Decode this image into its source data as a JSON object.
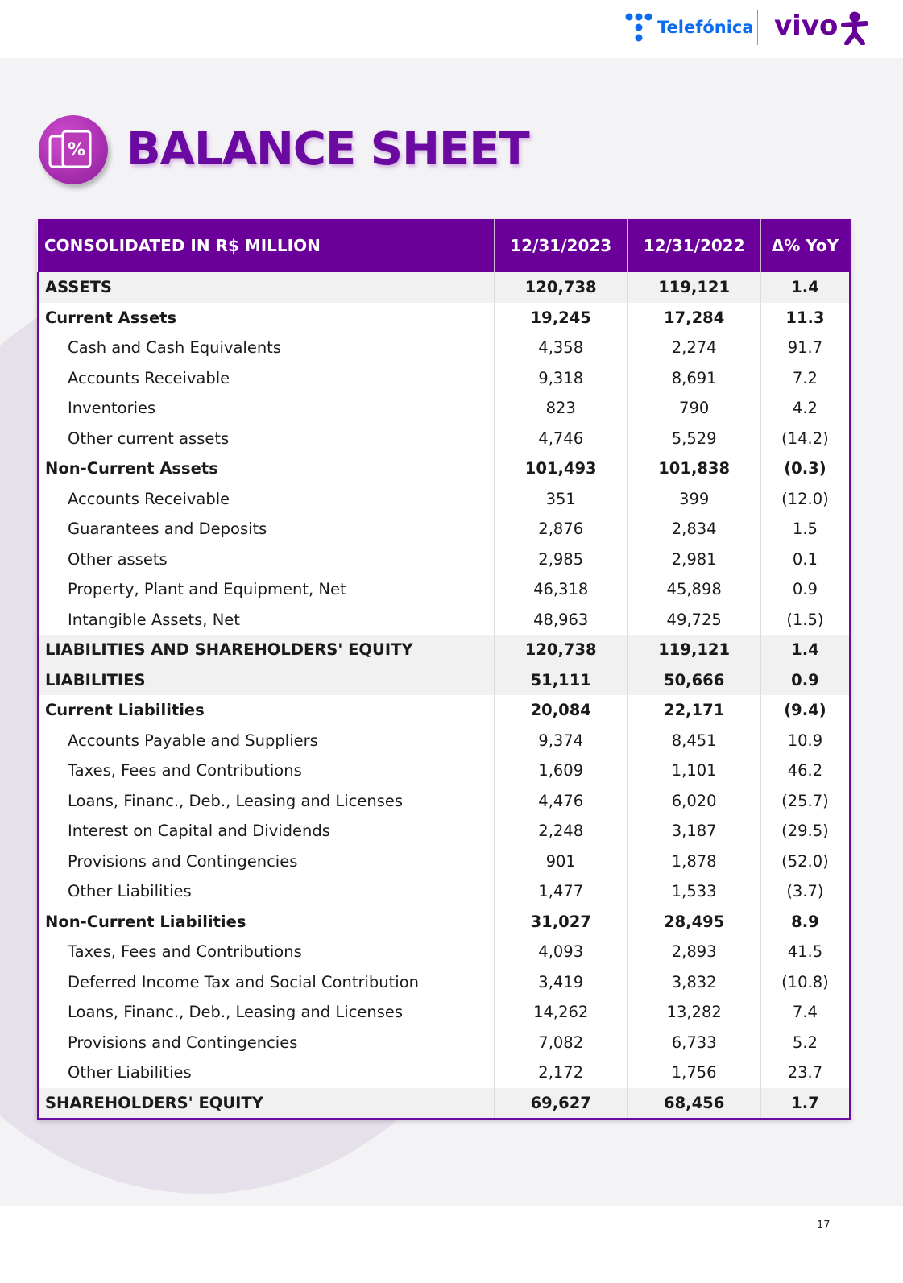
{
  "header": {
    "brand_1": "Telefónica",
    "brand_2": "vivo"
  },
  "title": "BALANCE SHEET",
  "table": {
    "columns": [
      "CONSOLIDATED IN R$ MILLION",
      "12/31/2023",
      "12/31/2022",
      "Δ% YoY"
    ],
    "rows": [
      [
        "ASSETS",
        "120,738",
        "119,121",
        "1.4"
      ],
      [
        "Current Assets",
        "19,245",
        "17,284",
        "11.3"
      ],
      [
        "Cash and Cash Equivalents",
        "4,358",
        "2,274",
        "91.7"
      ],
      [
        "Accounts Receivable",
        "9,318",
        "8,691",
        "7.2"
      ],
      [
        "Inventories",
        "823",
        "790",
        "4.2"
      ],
      [
        "Other current assets",
        "4,746",
        "5,529",
        "(14.2)"
      ],
      [
        "Non-Current Assets",
        "101,493",
        "101,838",
        "(0.3)"
      ],
      [
        "Accounts Receivable",
        "351",
        "399",
        "(12.0)"
      ],
      [
        "Guarantees and Deposits",
        "2,876",
        "2,834",
        "1.5"
      ],
      [
        "Other assets",
        "2,985",
        "2,981",
        "0.1"
      ],
      [
        "Property, Plant and Equipment, Net",
        "46,318",
        "45,898",
        "0.9"
      ],
      [
        "Intangible Assets, Net",
        "48,963",
        "49,725",
        "(1.5)"
      ],
      [
        "LIABILITIES AND SHAREHOLDERS' EQUITY",
        "120,738",
        "119,121",
        "1.4"
      ],
      [
        "LIABILITIES",
        "51,111",
        "50,666",
        "0.9"
      ],
      [
        "Current Liabilities",
        "20,084",
        "22,171",
        "(9.4)"
      ],
      [
        "Accounts Payable and Suppliers",
        "9,374",
        "8,451",
        "10.9"
      ],
      [
        "Taxes, Fees and Contributions",
        "1,609",
        "1,101",
        "46.2"
      ],
      [
        "Loans, Financ., Deb., Leasing and Licenses",
        "4,476",
        "6,020",
        "(25.7)"
      ],
      [
        "Interest on Capital and Dividends",
        "2,248",
        "3,187",
        "(29.5)"
      ],
      [
        "Provisions and Contingencies",
        "901",
        "1,878",
        "(52.0)"
      ],
      [
        "Other Liabilities",
        "1,477",
        "1,533",
        "(3.7)"
      ],
      [
        "Non-Current Liabilities",
        "31,027",
        "28,495",
        "8.9"
      ],
      [
        "Taxes, Fees and Contributions",
        "4,093",
        "2,893",
        "41.5"
      ],
      [
        "Deferred Income Tax and Social Contribution",
        "3,419",
        "3,832",
        "(10.8)"
      ],
      [
        "Loans, Financ., Deb., Leasing and Licenses",
        "14,262",
        "13,282",
        "7.4"
      ],
      [
        "Provisions and Contingencies",
        "7,082",
        "6,733",
        "5.2"
      ],
      [
        "Other Liabilities",
        "2,172",
        "1,756",
        "23.7"
      ],
      [
        "SHAREHOLDERS' EQUITY",
        "69,627",
        "68,456",
        "1.7"
      ]
    ]
  },
  "footer": {
    "page_number": "17"
  }
}
